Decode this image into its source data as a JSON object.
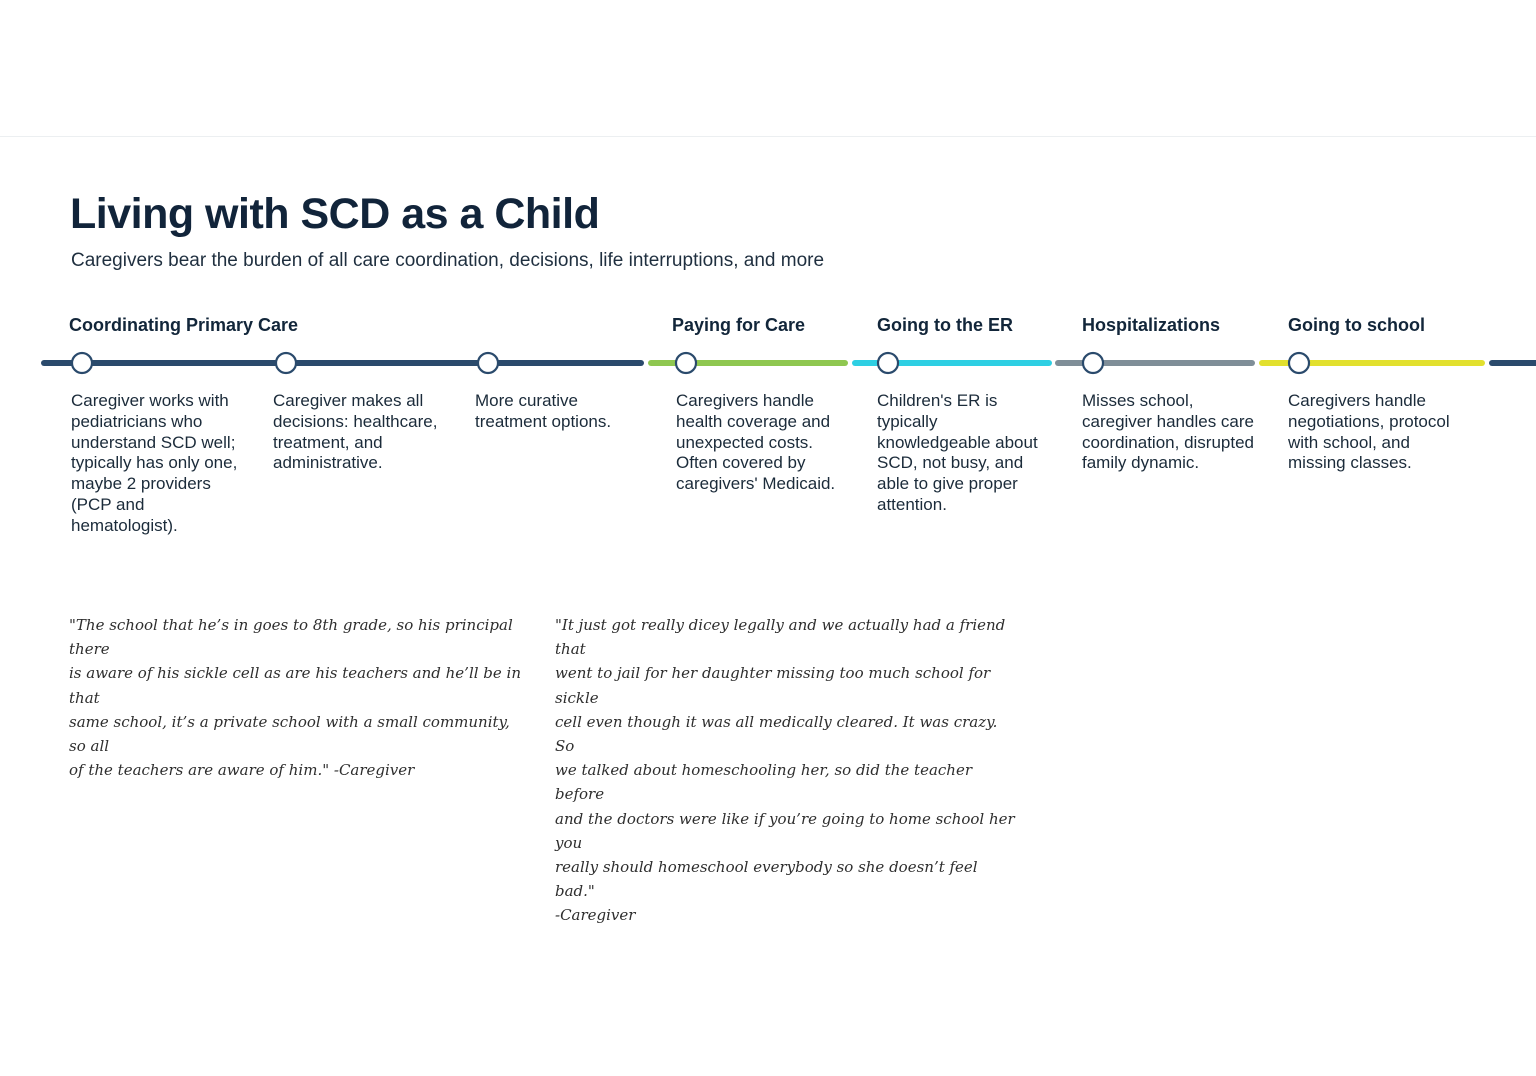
{
  "header": {
    "title": "Living with SCD as a Child",
    "subtitle": "Caregivers bear the burden of all care coordination, decisions, life interruptions, and more"
  },
  "phases": [
    {
      "label": "Coordinating Primary Care",
      "color": "#2a4a6c"
    },
    {
      "label": "Paying for Care",
      "color": "#8fc750"
    },
    {
      "label": "Going to the ER",
      "color": "#2ecfe3"
    },
    {
      "label": "Hospitalizations",
      "color": "#7f8e98"
    },
    {
      "label": "Going to school",
      "color": "#e2e02e"
    }
  ],
  "steps": [
    {
      "text": "Caregiver works with pediatricians who understand SCD well; typically has only one, maybe 2 providers (PCP and hematologist)."
    },
    {
      "text": "Caregiver makes all decisions: healthcare, treatment, and administrative."
    },
    {
      "text": "More curative treatment options."
    },
    {
      "text": "Caregivers handle health coverage and unexpected costs. Often covered by caregivers' Medicaid."
    },
    {
      "text": "Children's ER is typically knowledgeable about SCD, not busy, and able to give proper attention."
    },
    {
      "text": "Misses school, caregiver handles care coordination, disrupted family dynamic."
    },
    {
      "text": "Caregivers handle negotiations, protocol with school, and missing classes."
    }
  ],
  "quotes": [
    {
      "text": "\"The school that he’s in goes to 8th grade, so his principal there\nis aware of his sickle cell as are his teachers and he’ll be in that\nsame school, it’s a private school with a small community, so all\nof the teachers are aware of him.\" -Caregiver"
    },
    {
      "text": "\"It just got really dicey legally and we actually had a friend that\nwent to jail for her daughter missing too much school for sickle\ncell even though it was all medically cleared.  It was crazy.  So\nwe talked about homeschooling her, so did the teacher before\nand the doctors were like if you’re going to home school her you\nreally should homeschool everybody so she doesn’t feel bad.\"\n-Caregiver"
    }
  ]
}
